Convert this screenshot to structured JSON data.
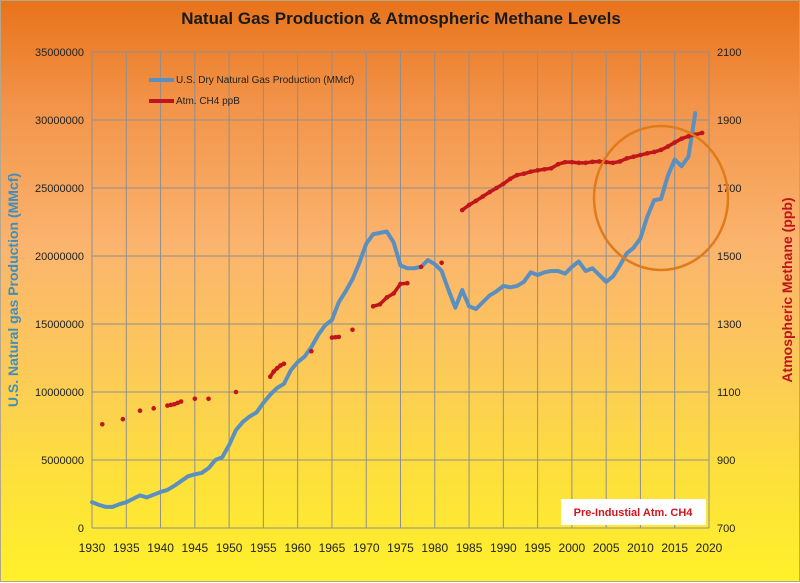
{
  "chart_data": {
    "type": "line",
    "title": "Natual Gas Production & Atmospheric Methane Levels",
    "xlabel": "",
    "ylabel_left": "U.S. Natural gas Production (MMcf)",
    "ylabel_right": "Atmospheric Methane (ppb)",
    "xlim": [
      1930,
      2020
    ],
    "ylim_left": [
      0,
      35000000
    ],
    "ylim_right": [
      700,
      2100
    ],
    "x_ticks": [
      "1930",
      "1935",
      "1940",
      "1945",
      "1950",
      "1955",
      "1960",
      "1965",
      "1970",
      "1975",
      "1980",
      "1985",
      "1990",
      "1995",
      "2000",
      "2005",
      "2010",
      "2015",
      "2020"
    ],
    "y_ticks_left": [
      "0",
      "5000000",
      "10000000",
      "15000000",
      "20000000",
      "25000000",
      "30000000",
      "35000000"
    ],
    "y_ticks_right": [
      "700",
      "900",
      "1100",
      "1300",
      "1500",
      "1700",
      "1900",
      "2100"
    ],
    "grid": true,
    "legend_position": "top-left",
    "annotation": "Pre-Industial Atm. CH4",
    "colors": {
      "gas": "#5b8fc0",
      "ch4": "#c0151a",
      "circle": "#e07b1a"
    },
    "series": [
      {
        "name": "U.S. Dry Natural Gas Production (MMcf)",
        "axis": "left",
        "x": [
          1930,
          1931,
          1932,
          1933,
          1934,
          1935,
          1936,
          1937,
          1938,
          1939,
          1940,
          1941,
          1942,
          1943,
          1944,
          1945,
          1946,
          1947,
          1948,
          1949,
          1950,
          1951,
          1952,
          1953,
          1954,
          1955,
          1956,
          1957,
          1958,
          1959,
          1960,
          1961,
          1962,
          1963,
          1964,
          1965,
          1966,
          1967,
          1968,
          1969,
          1970,
          1971,
          1972,
          1973,
          1974,
          1975,
          1976,
          1977,
          1978,
          1979,
          1980,
          1981,
          1982,
          1983,
          1984,
          1985,
          1986,
          1987,
          1988,
          1989,
          1990,
          1991,
          1992,
          1993,
          1994,
          1995,
          1996,
          1997,
          1998,
          1999,
          2000,
          2001,
          2002,
          2003,
          2004,
          2005,
          2006,
          2007,
          2008,
          2009,
          2010,
          2011,
          2012,
          2013,
          2014,
          2015,
          2016,
          2017,
          2018
        ],
        "values": [
          1900000,
          1700000,
          1550000,
          1550000,
          1750000,
          1900000,
          2150000,
          2400000,
          2250000,
          2450000,
          2650000,
          2800000,
          3100000,
          3450000,
          3800000,
          3950000,
          4050000,
          4400000,
          5000000,
          5200000,
          6100000,
          7200000,
          7800000,
          8200000,
          8500000,
          9200000,
          9800000,
          10300000,
          10600000,
          11600000,
          12200000,
          12600000,
          13300000,
          14200000,
          14900000,
          15300000,
          16600000,
          17400000,
          18300000,
          19500000,
          20900000,
          21600000,
          21700000,
          21800000,
          21000000,
          19300000,
          19100000,
          19100000,
          19200000,
          19700000,
          19400000,
          18900000,
          17500000,
          16200000,
          17500000,
          16300000,
          16100000,
          16600000,
          17100000,
          17400000,
          17800000,
          17700000,
          17800000,
          18100000,
          18800000,
          18600000,
          18800000,
          18900000,
          18900000,
          18700000,
          19200000,
          19600000,
          18900000,
          19100000,
          18600000,
          18100000,
          18500000,
          19300000,
          20200000,
          20600000,
          21300000,
          22900000,
          24100000,
          24200000,
          25900000,
          27100000,
          26600000,
          27300000,
          30500000
        ]
      },
      {
        "name": "Atm. CH4 ppB",
        "axis": "right",
        "x": [
          1931.5,
          1934.5,
          1937,
          1939,
          1941,
          1941.5,
          1942,
          1942.5,
          1943,
          1945,
          1947,
          1951,
          1956,
          1956.5,
          1957,
          1957.5,
          1958,
          1962,
          1965,
          1965.5,
          1966,
          1968,
          1971,
          1972,
          1973,
          1974,
          1975,
          1976,
          1978,
          1981,
          1984,
          1985,
          1986,
          1987,
          1988,
          1989,
          1990,
          1991,
          1992,
          1993,
          1994,
          1995,
          1996,
          1997,
          1998,
          1999,
          2000,
          2001,
          2002,
          2003,
          2004,
          2005,
          2006,
          2007,
          2008,
          2009,
          2010,
          2011,
          2012,
          2013,
          2014,
          2015,
          2016,
          2017,
          2018,
          2019
        ],
        "values": [
          1005,
          1020,
          1045,
          1052,
          1060,
          1062,
          1064,
          1068,
          1072,
          1080,
          1080,
          1100,
          1145,
          1160,
          1170,
          1178,
          1183,
          1220,
          1260,
          1261,
          1262,
          1283,
          1352,
          1358,
          1378,
          1390,
          1418,
          1420,
          1468,
          1480,
          1635,
          1650,
          1662,
          1675,
          1688,
          1700,
          1712,
          1727,
          1738,
          1742,
          1748,
          1752,
          1755,
          1758,
          1770,
          1776,
          1776,
          1774,
          1774,
          1777,
          1778,
          1776,
          1774,
          1778,
          1787,
          1792,
          1797,
          1802,
          1806,
          1812,
          1822,
          1834,
          1845,
          1852,
          1857,
          1862
        ]
      }
    ]
  }
}
